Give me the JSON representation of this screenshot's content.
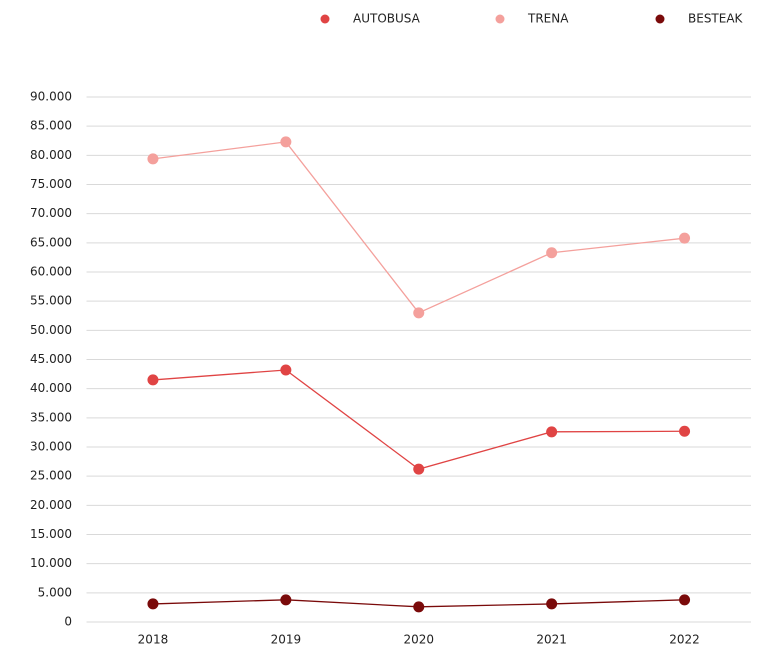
{
  "chart_data": {
    "type": "line",
    "categories": [
      "2018",
      "2019",
      "2020",
      "2021",
      "2022"
    ],
    "series": [
      {
        "name": "AUTOBUSA",
        "color": "#e04444",
        "values": [
          41500,
          43200,
          26200,
          32600,
          32700
        ]
      },
      {
        "name": "TRENA",
        "color": "#f4a09c",
        "values": [
          79400,
          82300,
          53000,
          63300,
          65800
        ]
      },
      {
        "name": "BESTEAK",
        "color": "#7a0a0a",
        "values": [
          3100,
          3800,
          2600,
          3100,
          3800
        ]
      }
    ],
    "ylim": [
      0,
      90000
    ],
    "yticks": [
      0,
      {
        "value": 5000,
        "label": "5.000"
      },
      {
        "value": 10000,
        "label": "10.000"
      },
      {
        "value": 15000,
        "label": "15.000"
      },
      {
        "value": 20000,
        "label": "20.000"
      },
      {
        "value": 25000,
        "label": "25.000"
      },
      {
        "value": 30000,
        "label": "30.000"
      },
      {
        "value": 35000,
        "label": "35.000"
      },
      {
        "value": 40000,
        "label": "40.000"
      },
      {
        "value": 45000,
        "label": "45.000"
      },
      {
        "value": 50000,
        "label": "50.000"
      },
      {
        "value": 55000,
        "label": "55.000"
      },
      {
        "value": 60000,
        "label": "60.000"
      },
      {
        "value": 65000,
        "label": "65.000"
      },
      {
        "value": 70000,
        "label": "70.000"
      },
      {
        "value": 75000,
        "label": "75.000"
      },
      {
        "value": 80000,
        "label": "80.000"
      },
      {
        "value": 85000,
        "label": "85.000"
      },
      {
        "value": 90000,
        "label": "90.000"
      }
    ],
    "grid": true,
    "legend": "top"
  }
}
